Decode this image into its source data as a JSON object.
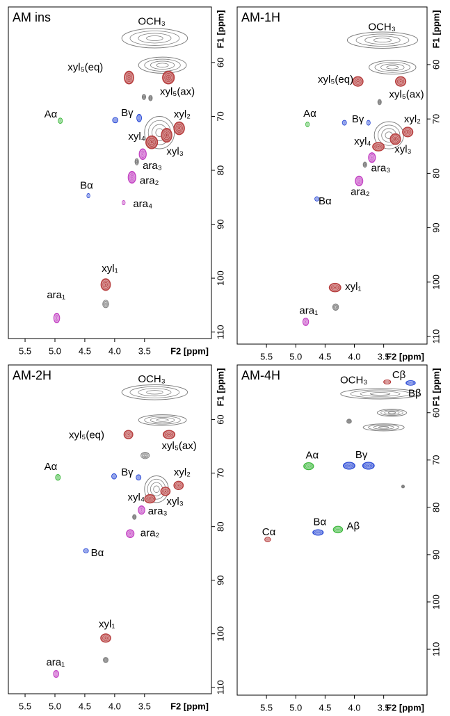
{
  "chart_data": [
    {
      "type": "scatter",
      "title": "AM ins",
      "xlabel": "F2 [ppm]",
      "ylabel": "F1 [ppm]",
      "xlim": [
        5.78,
        2.38
      ],
      "ylim": [
        49.7,
        111.2
      ],
      "xticks": [
        5.5,
        {
          "value": 5,
          "label": "5.0"
        },
        4.5,
        {
          "value": 4,
          "label": "4.0"
        },
        3.5
      ],
      "yticks": [
        60,
        70,
        80,
        90,
        100,
        110
      ],
      "points": [
        {
          "x": 3.33,
          "y": 55.5,
          "w": 1.1,
          "h": 3.6,
          "color": "#808080"
        },
        {
          "x": 3.2,
          "y": 60.5,
          "w": 0.8,
          "h": 3,
          "color": "#808080"
        },
        {
          "x": 3.25,
          "y": 73,
          "w": 0.5,
          "h": 6,
          "color": "#808080"
        },
        {
          "x": 3.76,
          "y": 62.8,
          "w": 0.16,
          "h": 2.4,
          "color": "#b53a3a"
        },
        {
          "x": 3.1,
          "y": 62.8,
          "w": 0.2,
          "h": 2.4,
          "color": "#b53a3a"
        },
        {
          "x": 3.51,
          "y": 66.4,
          "w": 0.06,
          "h": 1,
          "color": "#808080"
        },
        {
          "x": 3.4,
          "y": 66.6,
          "w": 0.06,
          "h": 1,
          "color": "#808080"
        },
        {
          "x": 4.91,
          "y": 70.8,
          "w": 0.07,
          "h": 1,
          "color": "#3cb83c"
        },
        {
          "x": 3.99,
          "y": 70.7,
          "w": 0.09,
          "h": 1,
          "color": "#2a4ad6"
        },
        {
          "x": 3.59,
          "y": 70.3,
          "w": 0.08,
          "h": 1.4,
          "color": "#2a4ad6"
        },
        {
          "x": 2.92,
          "y": 72.2,
          "w": 0.18,
          "h": 2.4,
          "color": "#b53a3a"
        },
        {
          "x": 3.13,
          "y": 73.5,
          "w": 0.18,
          "h": 2.6,
          "color": "#b53a3a"
        },
        {
          "x": 3.38,
          "y": 74.8,
          "w": 0.2,
          "h": 2.4,
          "color": "#b53a3a"
        },
        {
          "x": 3.53,
          "y": 77,
          "w": 0.12,
          "h": 2,
          "color": "#c23ec2"
        },
        {
          "x": 3.63,
          "y": 78.4,
          "w": 0.06,
          "h": 1.2,
          "color": "#808080"
        },
        {
          "x": 3.71,
          "y": 81.3,
          "w": 0.13,
          "h": 2.2,
          "color": "#c23ec2"
        },
        {
          "x": 4.44,
          "y": 84.7,
          "w": 0.05,
          "h": 0.8,
          "color": "#2a4ad6"
        },
        {
          "x": 3.85,
          "y": 86,
          "w": 0.05,
          "h": 0.8,
          "color": "#c23ec2"
        },
        {
          "x": 4.15,
          "y": 101.2,
          "w": 0.16,
          "h": 2.2,
          "color": "#b53a3a"
        },
        {
          "x": 4.15,
          "y": 104.8,
          "w": 0.1,
          "h": 1.4,
          "color": "#808080"
        },
        {
          "x": 4.97,
          "y": 107.4,
          "w": 0.1,
          "h": 1.8,
          "color": "#c23ec2"
        }
      ],
      "annotations": [
        {
          "text": "OCH₃",
          "x": 3.38,
          "y": 52.5
        },
        {
          "text": "xyl₅(eq)",
          "x": 4.49,
          "y": 61
        },
        {
          "text": "xyl₅(ax)",
          "x": 2.95,
          "y": 65.5
        },
        {
          "text": "Aα",
          "x": 5.07,
          "y": 69.7
        },
        {
          "text": "Bγ",
          "x": 3.79,
          "y": 69.4
        },
        {
          "text": "xyl₂",
          "x": 2.87,
          "y": 69.7
        },
        {
          "text": "xyl₄",
          "x": 3.63,
          "y": 73.8
        },
        {
          "text": "xyl₃",
          "x": 2.99,
          "y": 76.6
        },
        {
          "text": "ara₃",
          "x": 3.37,
          "y": 79.2
        },
        {
          "text": "ara₂",
          "x": 3.42,
          "y": 82
        },
        {
          "text": "Bα",
          "x": 4.47,
          "y": 82.9
        },
        {
          "text": "ara₄",
          "x": 3.53,
          "y": 86.3
        },
        {
          "text": "xyl₁",
          "x": 4.08,
          "y": 98.3
        },
        {
          "text": "ara₁",
          "x": 4.98,
          "y": 103.2
        }
      ]
    },
    {
      "type": "scatter",
      "title": "AM-1H",
      "xlabel": "F2 [ppm]",
      "ylabel": "F1 [ppm]",
      "xlim": [
        6.0,
        2.76
      ],
      "ylim": [
        49.4,
        111.4
      ],
      "xticks": [
        5.5,
        {
          "value": 5,
          "label": "5.0"
        },
        4.5,
        {
          "value": 4,
          "label": "4.0"
        },
        3.5
      ],
      "yticks": [
        60,
        70,
        80,
        90,
        100,
        110
      ],
      "points": [
        {
          "x": 3.52,
          "y": 55.5,
          "w": 1.2,
          "h": 3,
          "color": "#808080"
        },
        {
          "x": 3.35,
          "y": 60.5,
          "w": 0.8,
          "h": 2.5,
          "color": "#808080"
        },
        {
          "x": 3.41,
          "y": 73,
          "w": 0.5,
          "h": 5,
          "color": "#808080"
        },
        {
          "x": 3.94,
          "y": 63.1,
          "w": 0.18,
          "h": 1.8,
          "color": "#b53a3a"
        },
        {
          "x": 3.21,
          "y": 63.1,
          "w": 0.18,
          "h": 1.8,
          "color": "#b53a3a"
        },
        {
          "x": 3.57,
          "y": 66.9,
          "w": 0.06,
          "h": 1,
          "color": "#808080"
        },
        {
          "x": 4.8,
          "y": 71,
          "w": 0.06,
          "h": 0.9,
          "color": "#3cb83c"
        },
        {
          "x": 4.17,
          "y": 70.7,
          "w": 0.07,
          "h": 0.9,
          "color": "#2a4ad6"
        },
        {
          "x": 3.76,
          "y": 70.7,
          "w": 0.06,
          "h": 0.9,
          "color": "#2a4ad6"
        },
        {
          "x": 3.09,
          "y": 72.4,
          "w": 0.18,
          "h": 1.8,
          "color": "#b53a3a"
        },
        {
          "x": 3.3,
          "y": 73.7,
          "w": 0.18,
          "h": 2,
          "color": "#b53a3a"
        },
        {
          "x": 3.59,
          "y": 75.1,
          "w": 0.2,
          "h": 1.6,
          "color": "#b53a3a"
        },
        {
          "x": 3.7,
          "y": 77.1,
          "w": 0.12,
          "h": 1.8,
          "color": "#c23ec2"
        },
        {
          "x": 3.82,
          "y": 78.4,
          "w": 0.06,
          "h": 1,
          "color": "#808080"
        },
        {
          "x": 3.92,
          "y": 81.4,
          "w": 0.13,
          "h": 1.8,
          "color": "#c23ec2"
        },
        {
          "x": 4.64,
          "y": 84.7,
          "w": 0.07,
          "h": 0.8,
          "color": "#2a4ad6"
        },
        {
          "x": 4.33,
          "y": 101,
          "w": 0.2,
          "h": 1.6,
          "color": "#b53a3a"
        },
        {
          "x": 4.32,
          "y": 104.6,
          "w": 0.1,
          "h": 1.2,
          "color": "#808080"
        },
        {
          "x": 4.83,
          "y": 107.3,
          "w": 0.1,
          "h": 1.4,
          "color": "#c23ec2"
        }
      ],
      "annotations": [
        {
          "text": "OCH₃",
          "x": 3.53,
          "y": 53.2
        },
        {
          "text": "xyl₅(eq)",
          "x": 4.32,
          "y": 62.8
        },
        {
          "text": "xyl₅(ax)",
          "x": 3.11,
          "y": 65.6
        },
        {
          "text": "Aα",
          "x": 4.76,
          "y": 69.1
        },
        {
          "text": "Bγ",
          "x": 3.94,
          "y": 70.1
        },
        {
          "text": "xyl₂",
          "x": 3.01,
          "y": 70.1
        },
        {
          "text": "xyl₄",
          "x": 3.86,
          "y": 74.2
        },
        {
          "text": "xyl₃",
          "x": 3.17,
          "y": 75.7
        },
        {
          "text": "ara₃",
          "x": 3.55,
          "y": 79.1
        },
        {
          "text": "ara₂",
          "x": 3.9,
          "y": 83.5
        },
        {
          "text": "Bα",
          "x": 4.5,
          "y": 85.2
        },
        {
          "text": "xyl₁",
          "x": 4.02,
          "y": 100.9
        },
        {
          "text": "ara₁",
          "x": 4.78,
          "y": 105.3
        }
      ]
    },
    {
      "type": "scatter",
      "title": "AM-2H",
      "xlabel": "F2 [ppm]",
      "ylabel": "F1 [ppm]",
      "xlim": [
        5.78,
        2.38
      ],
      "ylim": [
        49.8,
        111.2
      ],
      "xticks": [
        5.5,
        {
          "value": 5,
          "label": "5.0"
        },
        4.5,
        {
          "value": 4,
          "label": "4.0"
        },
        3.5
      ],
      "yticks": [
        60,
        70,
        80,
        90,
        100,
        110
      ],
      "points": [
        {
          "x": 3.33,
          "y": 54.9,
          "w": 1.1,
          "h": 2.8,
          "color": "#808080"
        },
        {
          "x": 3.2,
          "y": 60.1,
          "w": 0.8,
          "h": 2,
          "color": "#808080"
        },
        {
          "x": 3.3,
          "y": 73,
          "w": 0.4,
          "h": 5,
          "color": "#808080"
        },
        {
          "x": 3.77,
          "y": 62.8,
          "w": 0.15,
          "h": 1.6,
          "color": "#b53a3a"
        },
        {
          "x": 3.09,
          "y": 62.8,
          "w": 0.2,
          "h": 1.6,
          "color": "#b53a3a"
        },
        {
          "x": 3.49,
          "y": 66.7,
          "w": 0.14,
          "h": 1.2,
          "color": "#808080"
        },
        {
          "x": 4.95,
          "y": 70.8,
          "w": 0.08,
          "h": 1.1,
          "color": "#3cb83c"
        },
        {
          "x": 4.01,
          "y": 70.6,
          "w": 0.08,
          "h": 1,
          "color": "#2a4ad6"
        },
        {
          "x": 3.6,
          "y": 70.8,
          "w": 0.08,
          "h": 1,
          "color": "#2a4ad6"
        },
        {
          "x": 2.93,
          "y": 72.3,
          "w": 0.16,
          "h": 1.6,
          "color": "#b53a3a"
        },
        {
          "x": 3.15,
          "y": 73.4,
          "w": 0.16,
          "h": 1.6,
          "color": "#b53a3a"
        },
        {
          "x": 3.41,
          "y": 74.8,
          "w": 0.18,
          "h": 1.6,
          "color": "#b53a3a"
        },
        {
          "x": 3.55,
          "y": 76.9,
          "w": 0.11,
          "h": 1.6,
          "color": "#c23ec2"
        },
        {
          "x": 3.67,
          "y": 78.2,
          "w": 0.06,
          "h": 0.9,
          "color": "#808080"
        },
        {
          "x": 3.74,
          "y": 81.3,
          "w": 0.13,
          "h": 1.5,
          "color": "#c23ec2"
        },
        {
          "x": 4.48,
          "y": 84.5,
          "w": 0.08,
          "h": 0.8,
          "color": "#2a4ad6"
        },
        {
          "x": 4.15,
          "y": 100.8,
          "w": 0.17,
          "h": 1.6,
          "color": "#b53a3a"
        },
        {
          "x": 4.15,
          "y": 104.9,
          "w": 0.08,
          "h": 1,
          "color": "#808080"
        },
        {
          "x": 4.98,
          "y": 107.5,
          "w": 0.09,
          "h": 1.3,
          "color": "#c23ec2"
        }
      ],
      "annotations": [
        {
          "text": "OCH₃",
          "x": 3.38,
          "y": 52.5
        },
        {
          "text": "xyl₅(eq)",
          "x": 4.47,
          "y": 63
        },
        {
          "text": "xyl₅(ax)",
          "x": 2.92,
          "y": 65
        },
        {
          "text": "Aα",
          "x": 5.07,
          "y": 68.9
        },
        {
          "text": "Bγ",
          "x": 3.79,
          "y": 69.9
        },
        {
          "text": "xyl₂",
          "x": 2.87,
          "y": 69.9
        },
        {
          "text": "xyl₄",
          "x": 3.64,
          "y": 74.6
        },
        {
          "text": "xyl₃",
          "x": 2.99,
          "y": 75.4
        },
        {
          "text": "ara₃",
          "x": 3.28,
          "y": 77.2
        },
        {
          "text": "ara₂",
          "x": 3.41,
          "y": 81.3
        },
        {
          "text": "Bα",
          "x": 4.29,
          "y": 85
        },
        {
          "text": "xyl₁",
          "x": 4.13,
          "y": 98.3
        },
        {
          "text": "ara₁",
          "x": 4.99,
          "y": 105.4
        }
      ]
    },
    {
      "type": "scatter",
      "title": "AM-4H",
      "xlabel": "F2 [ppm]",
      "ylabel": "F1 [ppm]",
      "xlim": [
        6.0,
        2.76
      ],
      "ylim": [
        49.9,
        119.7
      ],
      "xticks": [
        5.5,
        {
          "value": 5,
          "label": "5.0"
        },
        4.5,
        {
          "value": 4,
          "label": "4.0"
        },
        3.5
      ],
      "yticks": [
        60,
        70,
        80,
        90,
        100,
        110
      ],
      "points": [
        {
          "x": 3.56,
          "y": 56,
          "w": 1.35,
          "h": 2.2,
          "color": "#808080"
        },
        {
          "x": 3.36,
          "y": 60,
          "w": 0.5,
          "h": 1.5,
          "color": "#808080"
        },
        {
          "x": 3.5,
          "y": 63.1,
          "w": 0.7,
          "h": 1.5,
          "color": "#808080"
        },
        {
          "x": 4.09,
          "y": 61.8,
          "w": 0.08,
          "h": 0.9,
          "color": "#808080"
        },
        {
          "x": 3.17,
          "y": 75.6,
          "w": 0.05,
          "h": 0.6,
          "color": "#808080"
        },
        {
          "x": 3.44,
          "y": 53.5,
          "w": 0.12,
          "h": 0.9,
          "color": "#b53a3a"
        },
        {
          "x": 3.04,
          "y": 53.7,
          "w": 0.16,
          "h": 1,
          "color": "#2a4ad6"
        },
        {
          "x": 4.78,
          "y": 71.3,
          "w": 0.17,
          "h": 1.5,
          "color": "#3cb83c"
        },
        {
          "x": 4.09,
          "y": 71.2,
          "w": 0.2,
          "h": 1.5,
          "color": "#2a4ad6"
        },
        {
          "x": 3.76,
          "y": 71.2,
          "w": 0.2,
          "h": 1.5,
          "color": "#2a4ad6"
        },
        {
          "x": 4.62,
          "y": 85.3,
          "w": 0.18,
          "h": 1.2,
          "color": "#2a4ad6"
        },
        {
          "x": 4.28,
          "y": 84.7,
          "w": 0.16,
          "h": 1.4,
          "color": "#3cb83c"
        },
        {
          "x": 5.48,
          "y": 86.8,
          "w": 0.1,
          "h": 1,
          "color": "#b53a3a"
        }
      ],
      "annotations": [
        {
          "text": "OCH₃",
          "x": 4.01,
          "y": 53.2
        },
        {
          "text": "Cβ",
          "x": 3.24,
          "y": 52.1
        },
        {
          "text": "Bβ",
          "x": 2.97,
          "y": 56
        },
        {
          "text": "Aα",
          "x": 4.72,
          "y": 69.1
        },
        {
          "text": "Bγ",
          "x": 3.88,
          "y": 69
        },
        {
          "text": "Bα",
          "x": 4.59,
          "y": 83.2
        },
        {
          "text": "Aβ",
          "x": 4.02,
          "y": 84.1
        },
        {
          "text": "Cα",
          "x": 5.46,
          "y": 85.3
        }
      ]
    }
  ]
}
